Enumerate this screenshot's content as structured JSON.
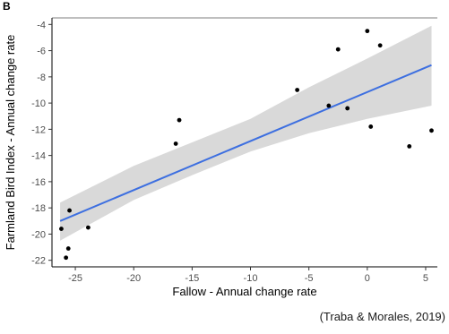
{
  "panel_label": "B",
  "citation": "(Traba & Morales, 2019)",
  "colors": {
    "regression_line": "#3d6fe0",
    "confidence_band": "#d9d9d9",
    "points": "#000000"
  },
  "chart_data": {
    "type": "scatter",
    "xlabel": "Fallow - Annual change rate",
    "ylabel": "Farmland Bird Index - Annual change rate",
    "xlim": [
      -27,
      6
    ],
    "ylim": [
      -22.5,
      -3.5
    ],
    "xticks": [
      -25,
      -20,
      -15,
      -10,
      -5,
      0,
      5
    ],
    "yticks": [
      -22,
      -20,
      -18,
      -16,
      -14,
      -12,
      -10,
      -8,
      -6,
      -4
    ],
    "grid": false,
    "points": [
      {
        "x": -26.2,
        "y": -19.6
      },
      {
        "x": -25.8,
        "y": -21.8
      },
      {
        "x": -25.6,
        "y": -21.1
      },
      {
        "x": -25.5,
        "y": -18.2
      },
      {
        "x": -23.9,
        "y": -19.5
      },
      {
        "x": -16.4,
        "y": -13.1
      },
      {
        "x": -16.1,
        "y": -11.3
      },
      {
        "x": -6.0,
        "y": -9.0
      },
      {
        "x": -3.3,
        "y": -10.2
      },
      {
        "x": -2.5,
        "y": -5.9
      },
      {
        "x": -1.7,
        "y": -10.4
      },
      {
        "x": 0.0,
        "y": -4.5
      },
      {
        "x": 0.3,
        "y": -11.8
      },
      {
        "x": 1.1,
        "y": -5.6
      },
      {
        "x": 3.6,
        "y": -13.3
      },
      {
        "x": 5.5,
        "y": -12.1
      }
    ],
    "fit": {
      "type": "linear",
      "x_range": [
        -26.3,
        5.5
      ],
      "y_at_x_start": -19.0,
      "y_at_x_end": -7.1,
      "ci_upper": [
        [
          -26.3,
          -17.6
        ],
        [
          -20,
          -14.8
        ],
        [
          -15,
          -13.0
        ],
        [
          -10,
          -11.2
        ],
        [
          -5,
          -8.8
        ],
        [
          0,
          -6.6
        ],
        [
          5.5,
          -4.1
        ]
      ],
      "ci_lower": [
        [
          -26.3,
          -20.5
        ],
        [
          -20,
          -17.4
        ],
        [
          -15,
          -15.5
        ],
        [
          -10,
          -13.7
        ],
        [
          -5,
          -12.3
        ],
        [
          0,
          -11.2
        ],
        [
          5.5,
          -10.2
        ]
      ]
    }
  }
}
